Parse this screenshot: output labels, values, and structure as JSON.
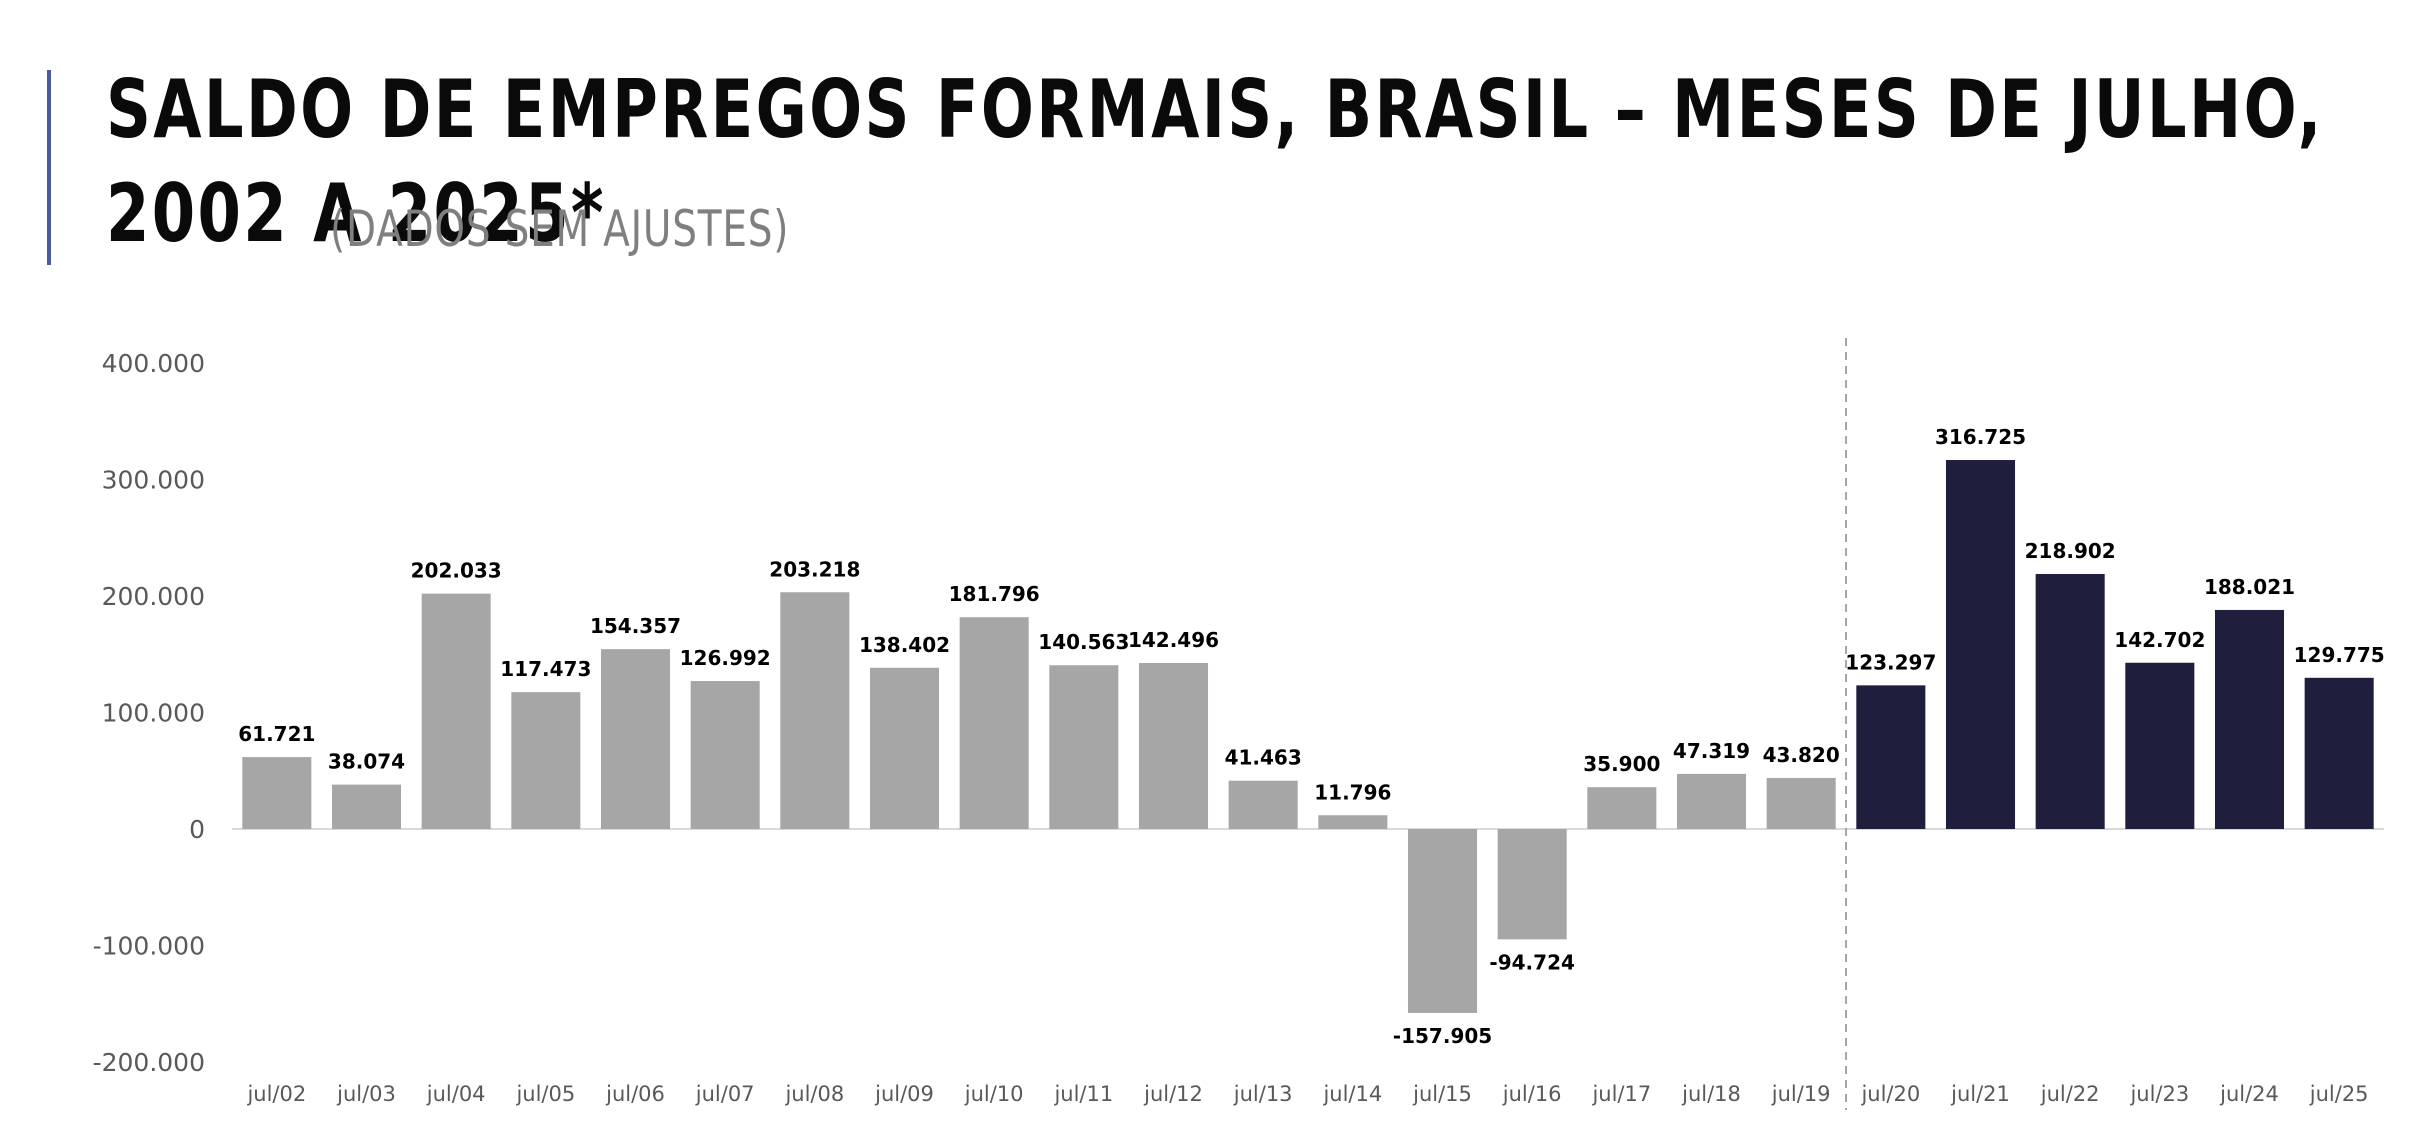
{
  "title": {
    "main": "SALDO DE EMPREGOS FORMAIS, BRASIL – MESES DE JULHO, 2002 A 2025*",
    "sub": "(DADOS SEM AJUSTES)"
  },
  "colors": {
    "accent": "#4a5a9c",
    "bar_old": "#a6a6a6",
    "bar_new": "#1f1f3d",
    "divider": "#a6a6a6"
  },
  "chart_data": {
    "type": "bar",
    "categories": [
      "jul/02",
      "jul/03",
      "jul/04",
      "jul/05",
      "jul/06",
      "jul/07",
      "jul/08",
      "jul/09",
      "jul/10",
      "jul/11",
      "jul/12",
      "jul/13",
      "jul/14",
      "jul/15",
      "jul/16",
      "jul/17",
      "jul/18",
      "jul/19",
      "jul/20",
      "jul/21",
      "jul/22",
      "jul/23",
      "jul/24",
      "jul/25"
    ],
    "values": [
      61721,
      38074,
      202033,
      117473,
      154357,
      126992,
      203218,
      138402,
      181796,
      140563,
      142496,
      41463,
      11796,
      -157905,
      -94724,
      35900,
      47319,
      43820,
      123297,
      316725,
      218902,
      142702,
      188021,
      129775
    ],
    "data_labels": [
      "61.721",
      "38.074",
      "202.033",
      "117.473",
      "154.357",
      "126.992",
      "203.218",
      "138.402",
      "181.796",
      "140.563",
      "142.496",
      "41.463",
      "11.796",
      "-157.905",
      "-94.724",
      "35.900",
      "47.319",
      "43.820",
      "123.297",
      "316.725",
      "218.902",
      "142.702",
      "188.021",
      "129.775"
    ],
    "y_ticks": [
      400000,
      300000,
      200000,
      100000,
      0,
      -100000,
      -200000
    ],
    "y_tick_labels": [
      "400.000",
      "300.000",
      "200.000",
      "100.000",
      "0",
      "-100.000",
      "-200.000"
    ],
    "ylim": [
      -200000,
      400000
    ],
    "divider_after": "jul/19",
    "highlight_from": "jul/20",
    "title": "",
    "xlabel": "",
    "ylabel": "",
    "grid": false,
    "legend": "none"
  }
}
